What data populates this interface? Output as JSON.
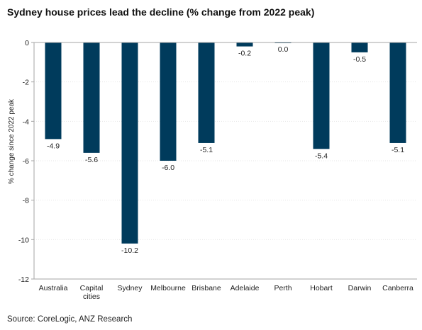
{
  "chart_data": {
    "type": "bar",
    "title": "Sydney house prices lead the decline (% change from 2022 peak)",
    "ylabel": "% change since 2022 peak",
    "xlabel": "",
    "categories": [
      "Australia",
      "Capital cities",
      "Sydney",
      "Melbourne",
      "Brisbane",
      "Adelaide",
      "Perth",
      "Hobart",
      "Darwin",
      "Canberra"
    ],
    "category_lines": [
      [
        "Australia"
      ],
      [
        "Capital",
        "cities"
      ],
      [
        "Sydney"
      ],
      [
        "Melbourne"
      ],
      [
        "Brisbane"
      ],
      [
        "Adelaide"
      ],
      [
        "Perth"
      ],
      [
        "Hobart"
      ],
      [
        "Darwin"
      ],
      [
        "Canberra"
      ]
    ],
    "values": [
      -4.9,
      -5.6,
      -10.2,
      -6.0,
      -5.1,
      -0.2,
      0.0,
      -5.4,
      -0.5,
      -5.1
    ],
    "data_labels": [
      "-4.9",
      "-5.6",
      "-10.2",
      "-6.0",
      "-5.1",
      "-0.2",
      "0.0",
      "-5.4",
      "-0.5",
      "-5.1"
    ],
    "ylim": [
      -12,
      0
    ],
    "yticks": [
      0,
      -2,
      -4,
      -6,
      -8,
      -10,
      -12
    ],
    "ytick_labels": [
      "0",
      "-2",
      "-4",
      "-6",
      "-8",
      "-10",
      "-12"
    ],
    "grid": true,
    "legend": "none",
    "source": "Source: CoreLogic, ANZ Research",
    "colors": {
      "bar": "#003b5c",
      "grid": "#e6e6e6",
      "axis": "#a6a6a6",
      "text": "#222222"
    }
  }
}
